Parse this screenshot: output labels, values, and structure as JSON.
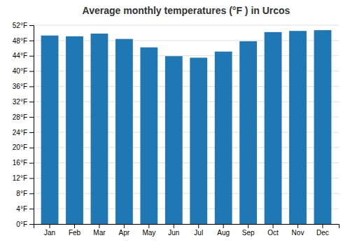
{
  "chart_data": {
    "type": "bar",
    "title": "Average monthly temperatures (°F ) in Urcos",
    "categories": [
      "Jan",
      "Feb",
      "Mar",
      "Apr",
      "May",
      "Jun",
      "Jul",
      "Aug",
      "Sep",
      "Oct",
      "Nov",
      "Dec"
    ],
    "values": [
      49.3,
      49.1,
      49.8,
      48.4,
      46.2,
      43.9,
      43.5,
      45.1,
      47.8,
      50.2,
      50.5,
      50.7
    ],
    "ylim": [
      0,
      52
    ],
    "yticks": [
      {
        "value": 0,
        "label": "0°F"
      },
      {
        "value": 4,
        "label": "4°F"
      },
      {
        "value": 8,
        "label": "8°F"
      },
      {
        "value": 12,
        "label": "12°F"
      },
      {
        "value": 16,
        "label": "16°F"
      },
      {
        "value": 20,
        "label": "20°F"
      },
      {
        "value": 24,
        "label": "24°F"
      },
      {
        "value": 28,
        "label": "28°F"
      },
      {
        "value": 32,
        "label": "32°F"
      },
      {
        "value": 36,
        "label": "36°F"
      },
      {
        "value": 40,
        "label": "40°F"
      },
      {
        "value": 44,
        "label": "44°F"
      },
      {
        "value": 48,
        "label": "48°F"
      },
      {
        "value": 52,
        "label": "52°F"
      }
    ],
    "grid": true
  }
}
